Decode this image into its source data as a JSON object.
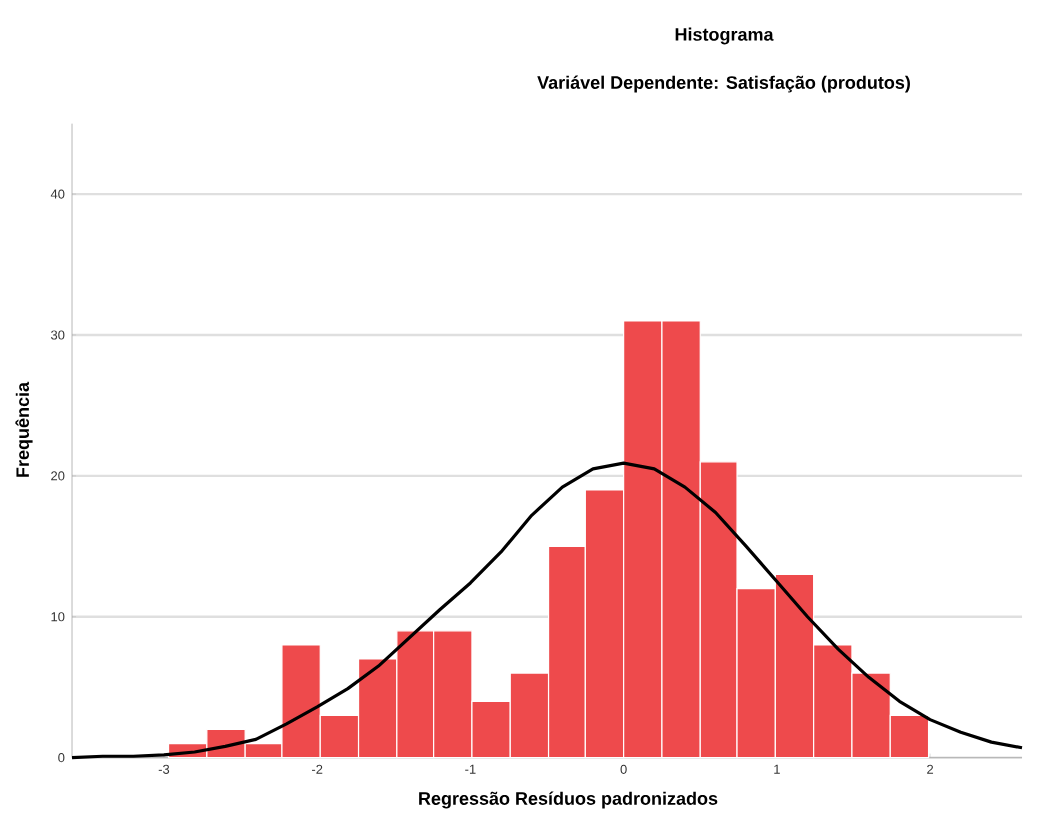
{
  "chart_data": {
    "type": "histogram",
    "title": "Histograma",
    "subtitle": "Variável Dependente: Satisfação (produtos)",
    "xlabel": "Regressão Resíduos padronizados",
    "ylabel": "Frequência",
    "bins": [
      -2.97,
      -2.72,
      -2.47,
      -2.23,
      -1.98,
      -1.73,
      -1.48,
      -1.24,
      -0.99,
      -0.74,
      -0.49,
      -0.25,
      0.0,
      0.25,
      0.5,
      0.74,
      0.99,
      1.24,
      1.49,
      1.74,
      1.99
    ],
    "values": [
      1,
      2,
      1,
      8,
      3,
      7,
      9,
      9,
      4,
      6,
      15,
      19,
      31,
      31,
      21,
      12,
      13,
      8,
      6,
      3
    ],
    "color": "#ee4a4c",
    "series": [
      {
        "type": "line",
        "color": "#000000",
        "x": [
          -3.6,
          -3.4,
          -3.2,
          -3.0,
          -2.8,
          -2.6,
          -2.4,
          -2.2,
          -2.0,
          -1.8,
          -1.6,
          -1.4,
          -1.2,
          -1.0,
          -0.8,
          -0.6,
          -0.4,
          -0.2,
          0.0,
          0.2,
          0.4,
          0.6,
          0.8,
          1.0,
          1.2,
          1.4,
          1.6,
          1.8,
          2.0,
          2.2,
          2.4,
          2.6
        ],
        "values": [
          0.0,
          0.1,
          0.1,
          0.2,
          0.4,
          0.8,
          1.3,
          2.4,
          3.6,
          4.9,
          6.5,
          8.5,
          10.5,
          12.4,
          14.6,
          17.2,
          19.2,
          20.5,
          20.9,
          20.5,
          19.2,
          17.4,
          15.0,
          12.5,
          10.0,
          7.7,
          5.7,
          4.0,
          2.7,
          1.8,
          1.1,
          0.7
        ]
      }
    ],
    "xlim": [
      -3.6,
      2.6
    ],
    "ylim": [
      0,
      45
    ],
    "xticks": [
      -3,
      -2,
      -1,
      0,
      1,
      2
    ],
    "yticks": [
      0,
      10,
      20,
      30,
      40
    ],
    "grid": "y"
  }
}
